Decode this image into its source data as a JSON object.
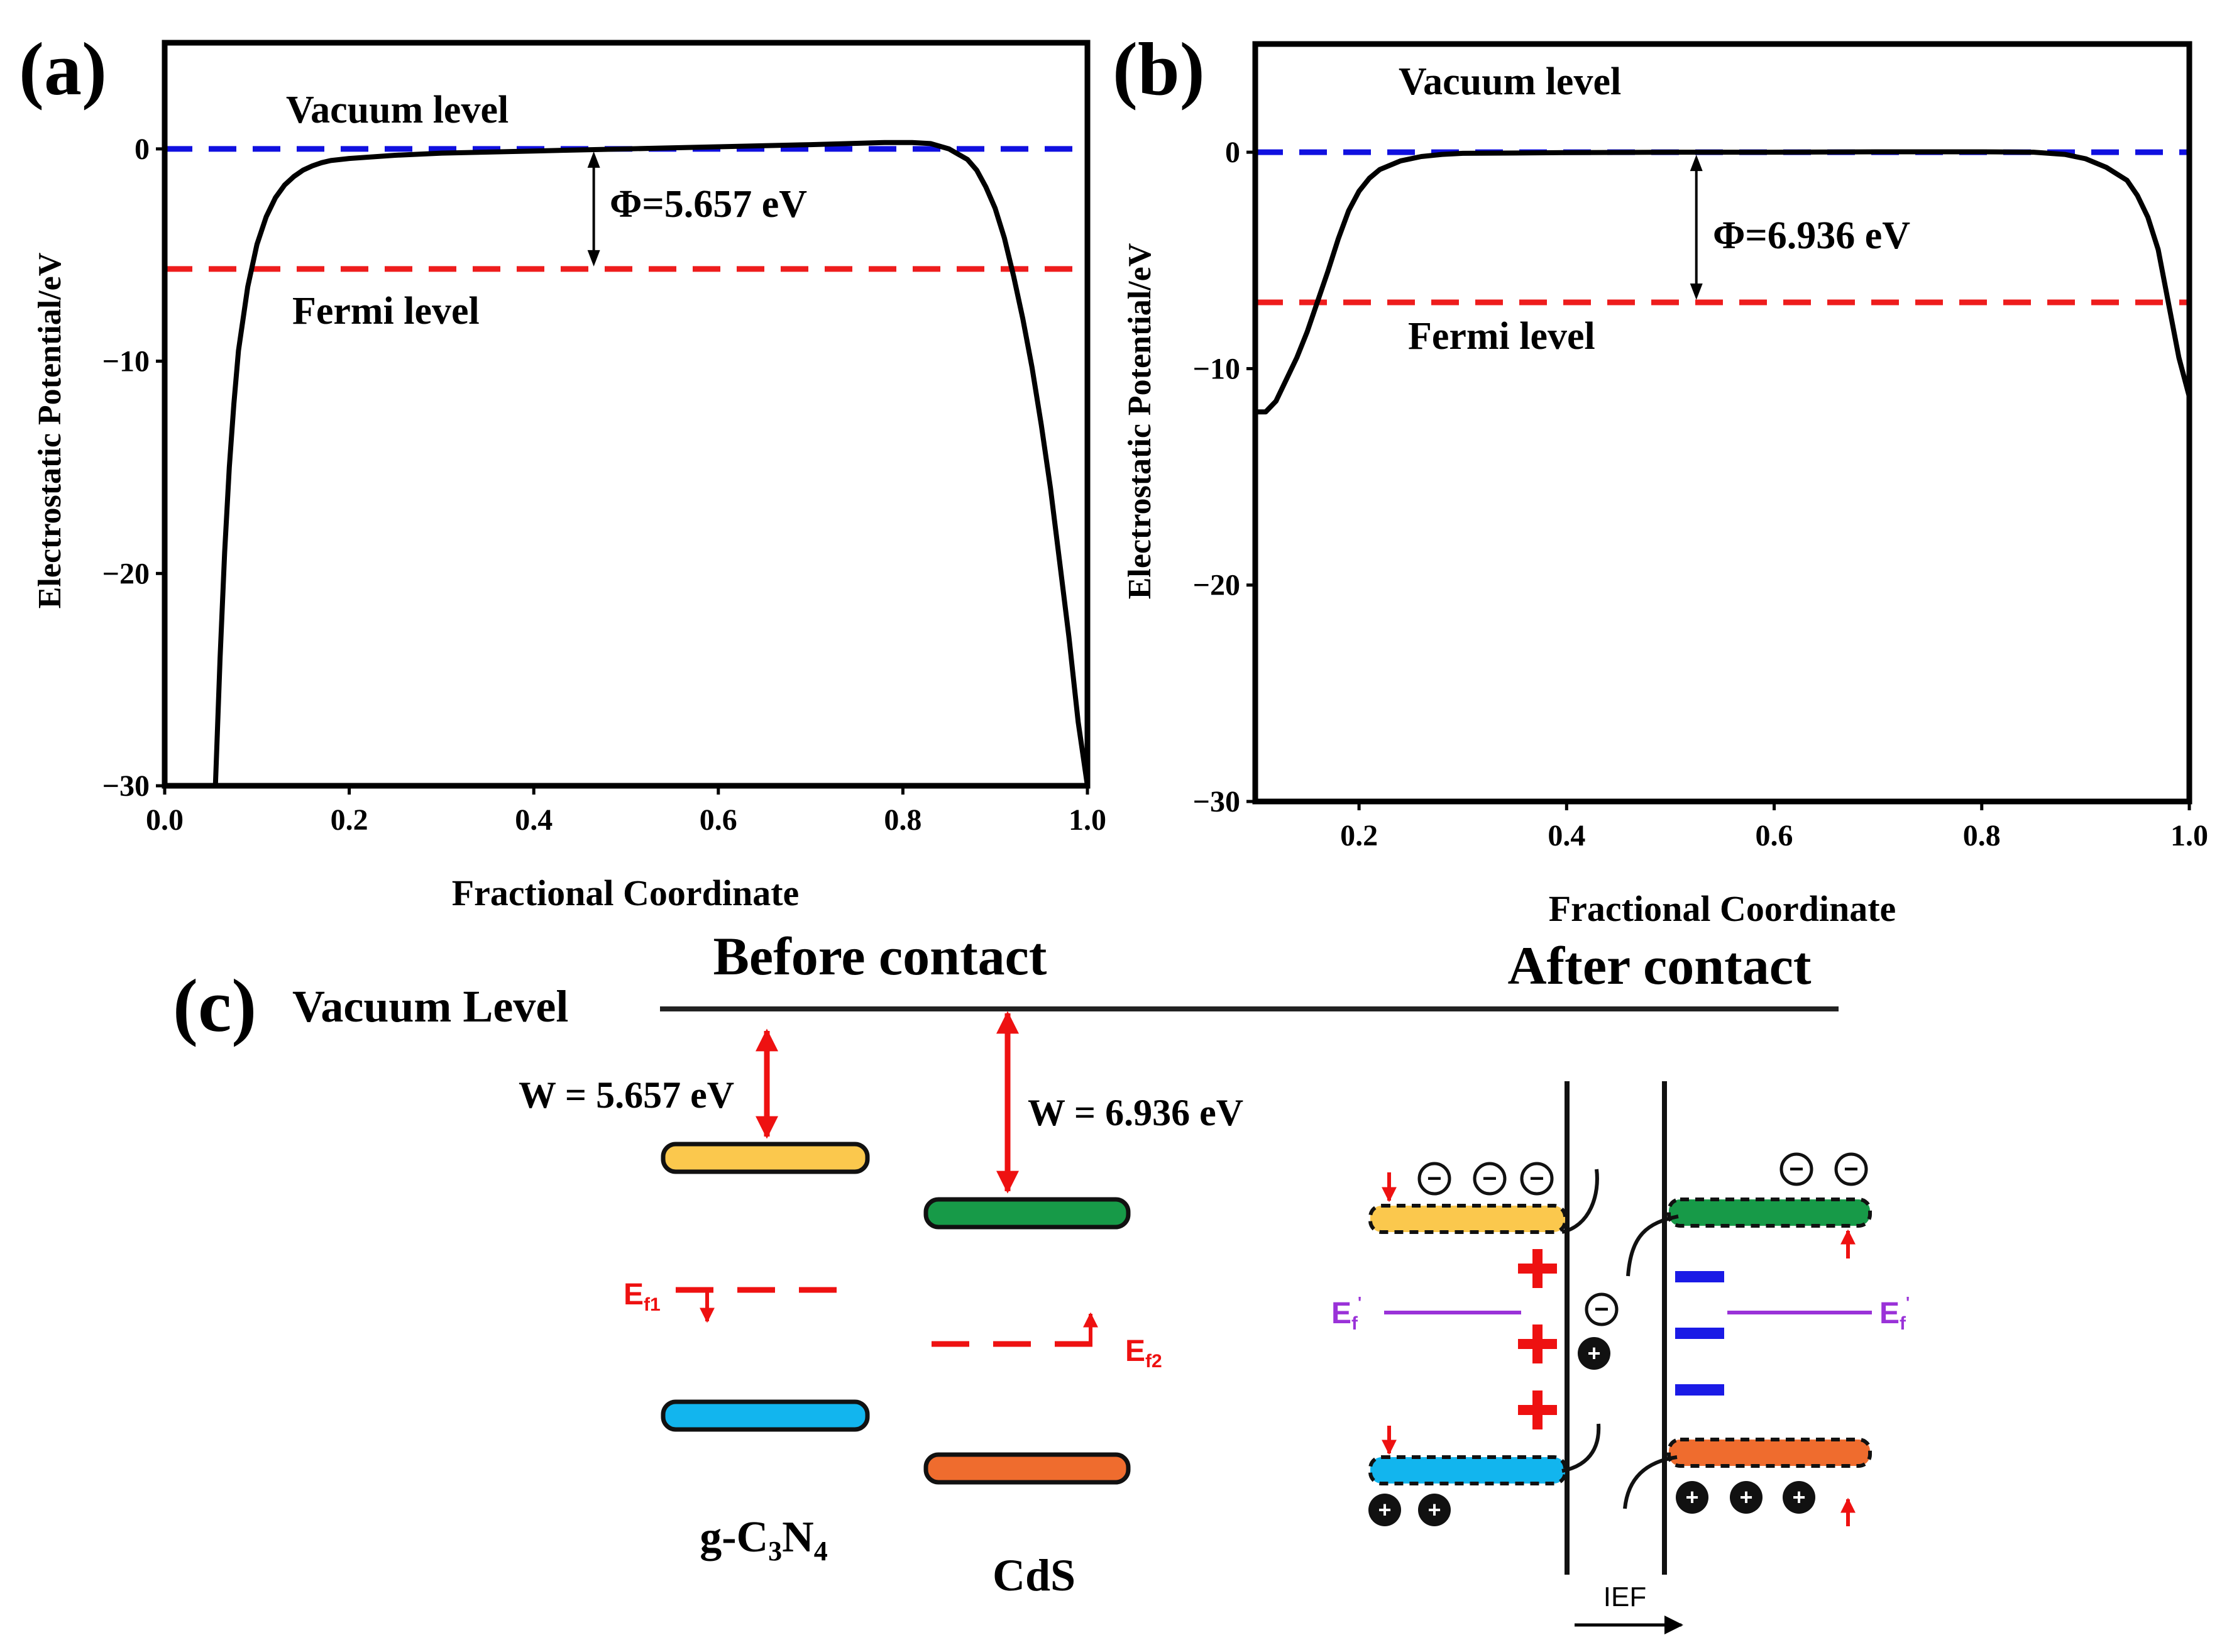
{
  "figure": {
    "colors": {
      "vacuum": "#1010e0",
      "fermi": "#ee1c1c",
      "curve": "#000000",
      "cb_gcn": "#fbc84d",
      "vb_gcn": "#12b5ee",
      "cb_cds": "#179a48",
      "vb_cds": "#ef6c2e",
      "ef_prime": "#9a32d8",
      "arrow_red": "#ee1111"
    }
  },
  "chart_data": [
    {
      "panel": "(a)",
      "type": "line",
      "xlabel": "Fractional Coordinate",
      "ylabel": "Electrostatic Potential/eV",
      "xlim": [
        0.0,
        1.0
      ],
      "ylim": [
        -30,
        5
      ],
      "xticks": [
        "0.0",
        "0.2",
        "0.4",
        "0.6",
        "0.8",
        "1.0"
      ],
      "xtick_values": [
        0.0,
        0.2,
        0.4,
        0.6,
        0.8,
        1.0
      ],
      "yticks": [
        "0",
        "−10",
        "−20",
        "−30"
      ],
      "ytick_values": [
        0,
        -10,
        -20,
        -30
      ],
      "vacuum_level": {
        "y": 0,
        "label": "Vacuum level"
      },
      "fermi_level": {
        "y": -5.657,
        "label": "Fermi level"
      },
      "work_function": {
        "label": "Φ=5.657 eV",
        "x": 0.465
      },
      "series": [
        {
          "name": "potential",
          "x": [
            0.055,
            0.06,
            0.065,
            0.07,
            0.075,
            0.08,
            0.09,
            0.1,
            0.11,
            0.12,
            0.13,
            0.14,
            0.15,
            0.16,
            0.17,
            0.18,
            0.2,
            0.25,
            0.3,
            0.4,
            0.5,
            0.6,
            0.7,
            0.78,
            0.81,
            0.83,
            0.85,
            0.87,
            0.88,
            0.89,
            0.9,
            0.91,
            0.92,
            0.93,
            0.94,
            0.95,
            0.96,
            0.97,
            0.98,
            0.99,
            1.0
          ],
          "y": [
            -30,
            -24,
            -19,
            -15,
            -12,
            -9.5,
            -6.5,
            -4.5,
            -3.2,
            -2.3,
            -1.7,
            -1.3,
            -1.0,
            -0.8,
            -0.65,
            -0.55,
            -0.45,
            -0.3,
            -0.2,
            -0.1,
            0.0,
            0.1,
            0.2,
            0.3,
            0.3,
            0.25,
            0.0,
            -0.5,
            -1.0,
            -1.8,
            -2.8,
            -4.2,
            -6.0,
            -8.0,
            -10.3,
            -13.0,
            -16.0,
            -19.5,
            -23.0,
            -27.0,
            -30.0
          ]
        }
      ]
    },
    {
      "panel": "(b)",
      "type": "line",
      "xlabel": "Fractional Coordinate",
      "ylabel": "Electrostatic Potential/eV",
      "xlim": [
        0.1,
        1.0
      ],
      "ylim": [
        -30,
        5
      ],
      "xticks": [
        "0.2",
        "0.4",
        "0.6",
        "0.8",
        "1.0"
      ],
      "xtick_values": [
        0.2,
        0.4,
        0.6,
        0.8,
        1.0
      ],
      "yticks": [
        "0",
        "−10",
        "−20",
        "−30"
      ],
      "ytick_values": [
        0,
        -10,
        -20,
        -30
      ],
      "vacuum_level": {
        "y": 0,
        "label": "Vacuum level"
      },
      "fermi_level": {
        "y": -6.936,
        "label": "Fermi level"
      },
      "work_function": {
        "label": "Φ=6.936 eV",
        "x": 0.525
      },
      "series": [
        {
          "name": "potential",
          "x": [
            0.1,
            0.11,
            0.12,
            0.13,
            0.14,
            0.15,
            0.16,
            0.17,
            0.18,
            0.19,
            0.2,
            0.21,
            0.22,
            0.24,
            0.26,
            0.28,
            0.3,
            0.4,
            0.5,
            0.6,
            0.7,
            0.8,
            0.85,
            0.88,
            0.9,
            0.92,
            0.94,
            0.95,
            0.96,
            0.97,
            0.98,
            0.99,
            1.0
          ],
          "y": [
            -12.0,
            -12.0,
            -11.5,
            -10.5,
            -9.5,
            -8.3,
            -6.9,
            -5.5,
            -4.0,
            -2.7,
            -1.8,
            -1.2,
            -0.8,
            -0.4,
            -0.2,
            -0.1,
            -0.05,
            -0.02,
            0.0,
            0.0,
            0.02,
            0.02,
            0.0,
            -0.1,
            -0.3,
            -0.7,
            -1.3,
            -2.0,
            -3.0,
            -4.5,
            -7.0,
            -9.5,
            -11.3
          ]
        }
      ]
    }
  ],
  "panel_c": {
    "label": "(c)",
    "vacuum_level_label": "Vacuum Level",
    "before_title": "Before contact",
    "after_title": "After contact",
    "w_gcn": "W = 5.657 eV",
    "w_cds": "W = 6.936 eV",
    "ef1_main": "E",
    "ef1_sub": "f1",
    "ef2_main": "E",
    "ef2_sub": "f2",
    "gcn_g": "g-C",
    "gcn_sub3": "3",
    "gcn_n": "N",
    "gcn_sub4": "4",
    "cds": "CdS",
    "ef_prime_main": "E",
    "ef_prime_sub": "f",
    "ef_prime_sup": "'",
    "ief": "IEF",
    "minus_glyph": "−",
    "plus_glyph": "+"
  }
}
